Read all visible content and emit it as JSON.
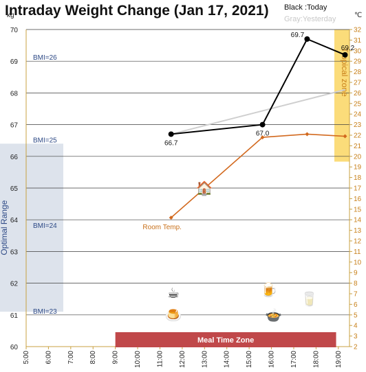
{
  "chart_data": {
    "type": "line",
    "title": "Intraday Weight Change (Jan 17, 2021)",
    "legend": {
      "today": "Black :Today",
      "yesterday": "Gray:Yesterday",
      "placement": "top-right"
    },
    "y_left": {
      "unit": "kg",
      "range": [
        60,
        70
      ],
      "ticks": [
        60,
        61,
        62,
        63,
        64,
        65,
        66,
        67,
        68,
        69,
        70
      ]
    },
    "y_right": {
      "unit": "℃",
      "range": [
        2,
        32
      ],
      "ticks": [
        2,
        3,
        4,
        5,
        6,
        7,
        8,
        9,
        10,
        11,
        12,
        13,
        14,
        15,
        16,
        17,
        18,
        19,
        20,
        21,
        22,
        23,
        24,
        25,
        26,
        27,
        28,
        29,
        30,
        31,
        32
      ]
    },
    "x_axis": {
      "range": [
        5,
        19.5
      ],
      "ticks": [
        "5:00",
        "6:00",
        "7:00",
        "8:00",
        "9:00",
        "10:00",
        "11:00",
        "12:00",
        "13:00",
        "14:00",
        "15:00",
        "16:00",
        "17:00",
        "18:00",
        "19:00"
      ]
    },
    "grid": true,
    "series": [
      {
        "name": "Today",
        "color": "#000000",
        "points": [
          [
            11.5,
            66.7
          ],
          [
            15.6,
            67.0
          ],
          [
            17.6,
            69.7
          ],
          [
            19.3,
            69.2
          ]
        ],
        "labels": [
          "66.7",
          "67.0",
          "69.7",
          "69.2"
        ]
      },
      {
        "name": "Yesterday",
        "color": "#cfcfcf",
        "points": [
          [
            11.5,
            66.7
          ],
          [
            19.3,
            68.1
          ]
        ]
      },
      {
        "name": "Room Temp.",
        "color": "#d2691e",
        "axis": "right",
        "points": [
          [
            11.5,
            14.2
          ],
          [
            15.6,
            21.8
          ],
          [
            17.6,
            22.1
          ],
          [
            19.3,
            21.9
          ]
        ]
      }
    ],
    "bmi_lines": [
      {
        "label": "BMI=26",
        "kg": 69.0
      },
      {
        "label": "BMI=25",
        "kg": 66.4
      },
      {
        "label": "BMI=24",
        "kg": 63.7
      },
      {
        "label": "BMI=23",
        "kg": 61.0
      }
    ],
    "bands": {
      "optimal": {
        "label": "Optimal Range",
        "kg": [
          61.1,
          66.4
        ],
        "color": "#dde3ec"
      },
      "tropical": {
        "label": "Tropical zone",
        "celsius": [
          19.5,
          32
        ],
        "color": "#fbdc7a"
      },
      "meal": {
        "label": "Meal Time Zone",
        "hours": [
          9,
          18.9
        ],
        "color": "#c0484a"
      }
    },
    "annotations": {
      "room_temp": "Room Temp."
    },
    "icons": [
      {
        "name": "fireplace-icon",
        "glyph": "🏠",
        "x": 13,
        "kg": 65.0
      },
      {
        "name": "hot-drink-icon",
        "glyph": "☕",
        "x": 11.6,
        "kg": 61.7
      },
      {
        "name": "pudding-icon",
        "glyph": "🍮",
        "x": 11.6,
        "kg": 61.0
      },
      {
        "name": "beer-icon",
        "glyph": "🍺",
        "x": 15.9,
        "kg": 61.8
      },
      {
        "name": "water-glass-icon",
        "glyph": "🥛",
        "x": 17.7,
        "kg": 61.5
      },
      {
        "name": "hotpot-icon",
        "glyph": "🍲",
        "x": 16.1,
        "kg": 61.0
      }
    ]
  }
}
